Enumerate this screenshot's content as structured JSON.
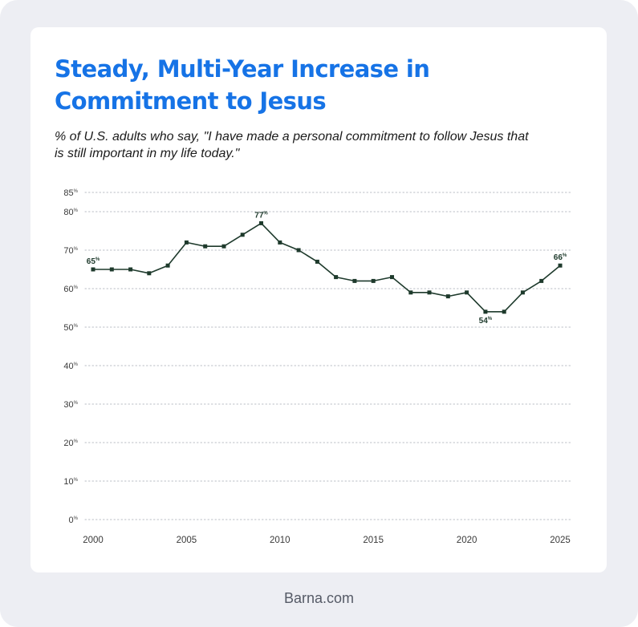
{
  "header": {
    "title_line1": "Steady, Multi-Year Increase in",
    "title_line2": "Commitment to Jesus",
    "subtitle_line1": "% of U.S. adults who say, \"I have made a personal commitment to follow Jesus that",
    "subtitle_line2": "is still important in my life today.\""
  },
  "footer": {
    "text": "Barna.com"
  },
  "colors": {
    "title": "#1673e6",
    "line": "#1e3a2c",
    "grid": "#b9bcc4",
    "background": "#edeef3",
    "card": "#ffffff"
  },
  "chart_data": {
    "type": "line",
    "title": "",
    "xlabel": "",
    "ylabel": "",
    "xlim": [
      2000,
      2025
    ],
    "ylim": [
      0,
      85
    ],
    "y_ticks": [
      0,
      10,
      20,
      30,
      40,
      50,
      60,
      70,
      80,
      85
    ],
    "y_tick_suffix": "%",
    "x_ticks": [
      2000,
      2005,
      2010,
      2015,
      2020,
      2025
    ],
    "grid": "horizontal-dotted",
    "legend": "none",
    "series": [
      {
        "x": [
          2000,
          2001,
          2002,
          2003,
          2004,
          2005,
          2006,
          2007,
          2008,
          2009,
          2010,
          2011,
          2012,
          2013,
          2014,
          2015,
          2016,
          2017,
          2018,
          2019,
          2020,
          2021,
          2022,
          2023,
          2024,
          2025
        ],
        "values": [
          65,
          65,
          65,
          64,
          66,
          72,
          71,
          71,
          74,
          77,
          72,
          70,
          67,
          63,
          62,
          62,
          63,
          59,
          59,
          58,
          59,
          54,
          54,
          59,
          62,
          66
        ]
      }
    ],
    "annotations": [
      {
        "x": 2000,
        "y": 65,
        "text": "65",
        "suffix": "%",
        "position": "above"
      },
      {
        "x": 2009,
        "y": 77,
        "text": "77",
        "suffix": "%",
        "position": "above"
      },
      {
        "x": 2021,
        "y": 54,
        "text": "54",
        "suffix": "%",
        "position": "below"
      },
      {
        "x": 2025,
        "y": 66,
        "text": "66",
        "suffix": "%",
        "position": "above"
      }
    ]
  }
}
